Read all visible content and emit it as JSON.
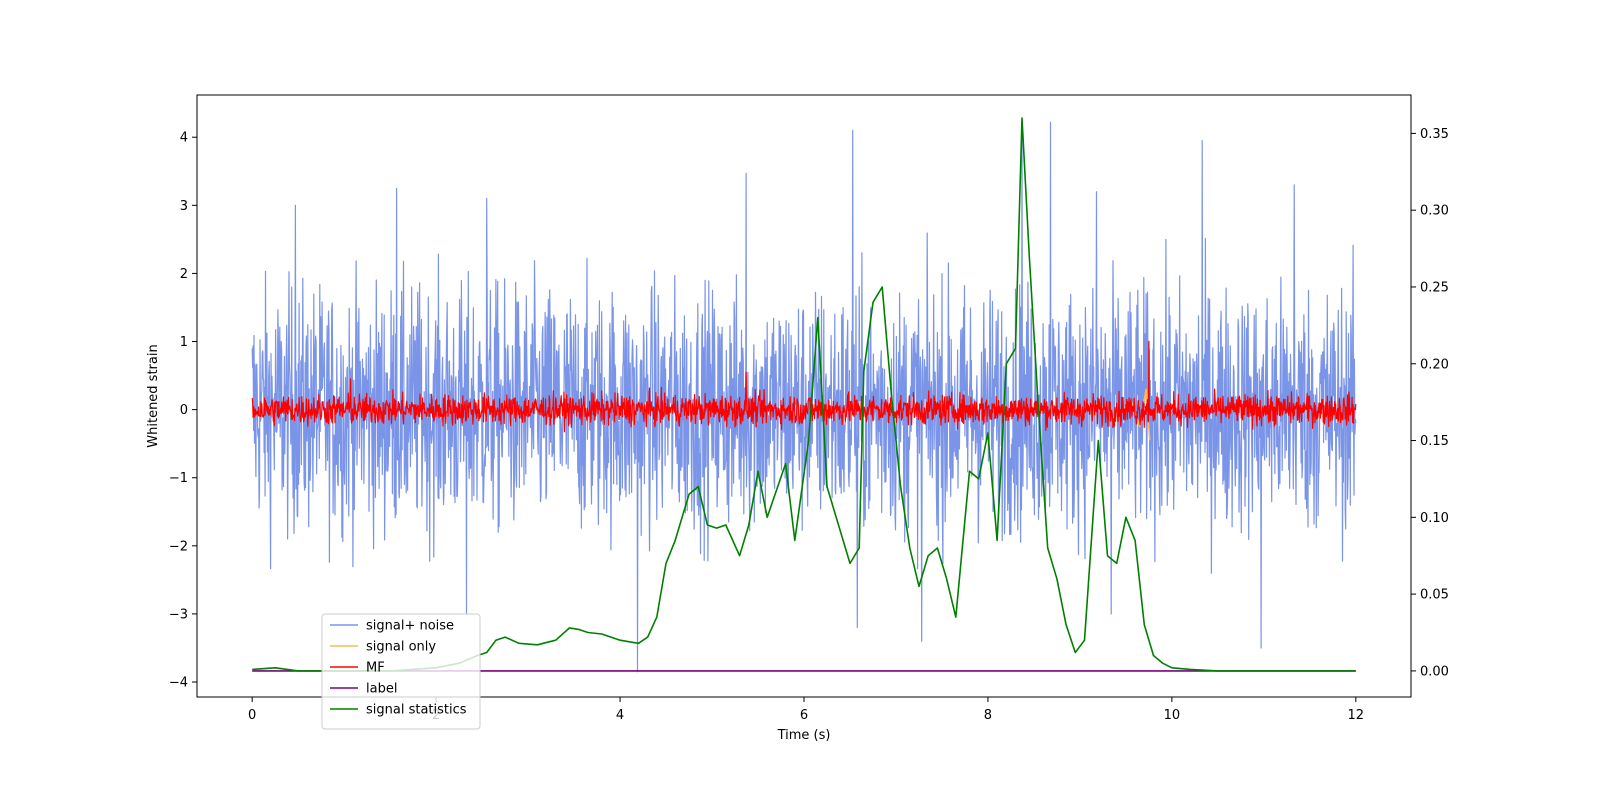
{
  "chart_data": {
    "type": "line",
    "title": "",
    "xlabel": "Time (s)",
    "ylabel": "Whitened strain",
    "y2label": "",
    "xlim": [
      -0.6,
      12.6
    ],
    "ylim": [
      -4.22,
      4.62
    ],
    "y2lim": [
      -0.017,
      0.375
    ],
    "xticks": [
      0,
      2,
      4,
      6,
      8,
      10,
      12
    ],
    "yticks": [
      -4,
      -3,
      -2,
      -1,
      0,
      1,
      2,
      3,
      4
    ],
    "y2ticks": [
      0.0,
      0.05,
      0.1,
      0.15,
      0.2,
      0.25,
      0.3,
      0.35
    ],
    "xtick_labels": [
      "0",
      "2",
      "4",
      "6",
      "8",
      "10",
      "12"
    ],
    "ytick_labels": [
      "−4",
      "−3",
      "−2",
      "−1",
      "0",
      "1",
      "2",
      "3",
      "4"
    ],
    "y2tick_labels": [
      "0.00",
      "0.05",
      "0.10",
      "0.15",
      "0.20",
      "0.25",
      "0.30",
      "0.35"
    ],
    "grid": false,
    "legend_position": "lower-left",
    "series": [
      {
        "name": "signal+ noise",
        "axis": "left",
        "color": "#7a94e8",
        "kind": "noise",
        "x_range": [
          0,
          12
        ],
        "typical_range": [
          -2.0,
          2.0
        ],
        "spikes": [
          {
            "x": 0.47,
            "y": 3.0
          },
          {
            "x": 1.57,
            "y": 3.25
          },
          {
            "x": 2.55,
            "y": 3.1
          },
          {
            "x": 4.19,
            "y": -3.85
          },
          {
            "x": 5.37,
            "y": 3.47
          },
          {
            "x": 6.53,
            "y": 4.1
          },
          {
            "x": 7.28,
            "y": -3.4
          },
          {
            "x": 8.37,
            "y": 4.2
          },
          {
            "x": 8.68,
            "y": 4.22
          },
          {
            "x": 9.18,
            "y": 3.2
          },
          {
            "x": 10.33,
            "y": 3.95
          },
          {
            "x": 10.97,
            "y": -3.5
          },
          {
            "x": 11.33,
            "y": 3.3
          },
          {
            "x": 2.33,
            "y": -3.0
          },
          {
            "x": 6.58,
            "y": -3.2
          },
          {
            "x": 9.34,
            "y": -3.0
          }
        ]
      },
      {
        "name": "signal only",
        "axis": "left",
        "color": "#f5b85a",
        "kind": "chirp",
        "x": [
          9.0,
          9.2,
          9.4,
          9.55,
          9.65,
          9.72,
          9.76
        ],
        "y": [
          0.0,
          0.1,
          -0.15,
          0.15,
          -0.25,
          0.3,
          -0.45
        ]
      },
      {
        "name": "MF",
        "axis": "left",
        "color": "#ff0000",
        "kind": "noise",
        "x_range": [
          0,
          12
        ],
        "typical_range": [
          -0.25,
          0.25
        ],
        "spikes": [
          {
            "x": 9.75,
            "y": 1.0
          },
          {
            "x": 5.37,
            "y": 0.55
          },
          {
            "x": 1.07,
            "y": 0.45
          }
        ]
      },
      {
        "name": "label",
        "axis": "right",
        "color": "#7b0080",
        "kind": "line",
        "x": [
          0,
          12
        ],
        "y": [
          0.0,
          0.0
        ]
      },
      {
        "name": "signal statistics",
        "axis": "right",
        "color": "#008000",
        "kind": "line",
        "x": [
          0.0,
          0.25,
          0.5,
          1.0,
          1.5,
          2.0,
          2.25,
          2.45,
          2.55,
          2.65,
          2.75,
          2.9,
          3.1,
          3.3,
          3.45,
          3.55,
          3.65,
          3.8,
          4.0,
          4.2,
          4.3,
          4.4,
          4.5,
          4.6,
          4.75,
          4.85,
          4.95,
          5.05,
          5.15,
          5.3,
          5.4,
          5.5,
          5.6,
          5.8,
          5.9,
          6.05,
          6.15,
          6.25,
          6.35,
          6.5,
          6.6,
          6.65,
          6.75,
          6.85,
          6.95,
          7.05,
          7.15,
          7.25,
          7.35,
          7.45,
          7.55,
          7.65,
          7.8,
          7.9,
          8.0,
          8.1,
          8.2,
          8.3,
          8.37,
          8.45,
          8.55,
          8.65,
          8.75,
          8.85,
          8.95,
          9.05,
          9.2,
          9.3,
          9.4,
          9.5,
          9.6,
          9.7,
          9.8,
          9.9,
          10.0,
          10.2,
          10.5,
          11.0,
          11.5,
          12.0
        ],
        "y": [
          0.001,
          0.002,
          0.0,
          0.0,
          0.0,
          0.002,
          0.005,
          0.01,
          0.012,
          0.02,
          0.022,
          0.018,
          0.017,
          0.02,
          0.028,
          0.027,
          0.025,
          0.024,
          0.02,
          0.018,
          0.022,
          0.035,
          0.07,
          0.085,
          0.115,
          0.12,
          0.095,
          0.093,
          0.095,
          0.075,
          0.095,
          0.13,
          0.1,
          0.135,
          0.085,
          0.15,
          0.23,
          0.12,
          0.1,
          0.07,
          0.08,
          0.195,
          0.24,
          0.25,
          0.18,
          0.12,
          0.08,
          0.055,
          0.075,
          0.08,
          0.06,
          0.035,
          0.13,
          0.125,
          0.155,
          0.085,
          0.2,
          0.21,
          0.36,
          0.27,
          0.17,
          0.08,
          0.06,
          0.03,
          0.012,
          0.02,
          0.15,
          0.075,
          0.07,
          0.1,
          0.085,
          0.03,
          0.01,
          0.005,
          0.002,
          0.001,
          0.0,
          0.0,
          0.0,
          0.0
        ]
      }
    ]
  }
}
